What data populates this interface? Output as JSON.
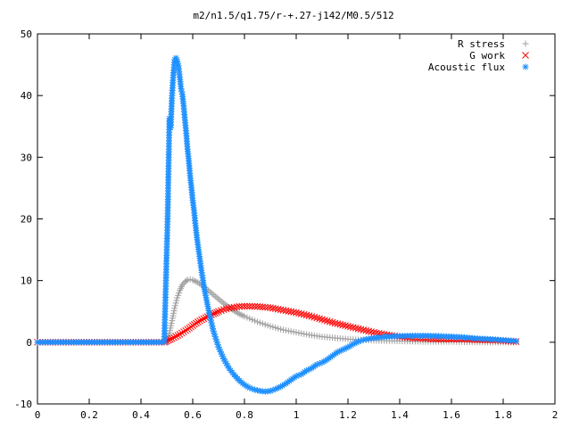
{
  "chart_data": {
    "type": "scatter",
    "title": "m2/n1.5/q1.75/r-+.27-j142/M0.5/512",
    "xlabel": "",
    "ylabel": "",
    "xlim": [
      0,
      2
    ],
    "ylim": [
      -10,
      50
    ],
    "xticks": [
      0,
      0.2,
      0.4,
      0.6,
      0.8,
      1,
      1.2,
      1.4,
      1.6,
      1.8,
      2
    ],
    "xtick_labels": [
      "0",
      "0.2",
      "0.4",
      "0.6",
      "0.8",
      "1",
      "1.2",
      "1.4",
      "1.6",
      "1.8",
      "2"
    ],
    "yticks": [
      -10,
      0,
      10,
      20,
      30,
      40,
      50
    ],
    "ytick_labels": [
      "-10",
      "0",
      "10",
      "20",
      "30",
      "40",
      "50"
    ],
    "grid": false,
    "legend_position": "top-right",
    "series": [
      {
        "name": "R stress",
        "marker": "+",
        "color": "#a0a0a0",
        "points": [
          [
            0.0,
            0
          ],
          [
            0.1,
            0
          ],
          [
            0.2,
            0
          ],
          [
            0.3,
            0
          ],
          [
            0.4,
            0
          ],
          [
            0.49,
            0
          ],
          [
            0.5,
            0.3
          ],
          [
            0.51,
            1.5
          ],
          [
            0.52,
            3.5
          ],
          [
            0.53,
            5.5
          ],
          [
            0.54,
            7.2
          ],
          [
            0.55,
            8.4
          ],
          [
            0.56,
            9.3
          ],
          [
            0.57,
            9.8
          ],
          [
            0.58,
            10.1
          ],
          [
            0.59,
            10.2
          ],
          [
            0.6,
            10.1
          ],
          [
            0.62,
            9.7
          ],
          [
            0.64,
            9.1
          ],
          [
            0.66,
            8.4
          ],
          [
            0.68,
            7.7
          ],
          [
            0.7,
            7.0
          ],
          [
            0.72,
            6.3
          ],
          [
            0.74,
            5.7
          ],
          [
            0.76,
            5.1
          ],
          [
            0.78,
            4.6
          ],
          [
            0.8,
            4.2
          ],
          [
            0.85,
            3.3
          ],
          [
            0.9,
            2.6
          ],
          [
            0.95,
            2.0
          ],
          [
            1.0,
            1.6
          ],
          [
            1.05,
            1.2
          ],
          [
            1.1,
            0.9
          ],
          [
            1.15,
            0.7
          ],
          [
            1.2,
            0.5
          ],
          [
            1.3,
            0.3
          ],
          [
            1.4,
            0.2
          ],
          [
            1.5,
            0.1
          ],
          [
            1.6,
            0.1
          ],
          [
            1.7,
            0
          ],
          [
            1.8,
            0
          ],
          [
            1.85,
            0
          ]
        ]
      },
      {
        "name": "G work",
        "marker": "x",
        "color": "#ff0000",
        "points": [
          [
            0.0,
            0
          ],
          [
            0.1,
            0
          ],
          [
            0.2,
            0
          ],
          [
            0.3,
            0
          ],
          [
            0.4,
            0
          ],
          [
            0.49,
            0
          ],
          [
            0.5,
            0.2
          ],
          [
            0.52,
            0.6
          ],
          [
            0.55,
            1.3
          ],
          [
            0.58,
            2.1
          ],
          [
            0.6,
            2.7
          ],
          [
            0.62,
            3.3
          ],
          [
            0.65,
            4.0
          ],
          [
            0.68,
            4.6
          ],
          [
            0.7,
            5.0
          ],
          [
            0.72,
            5.3
          ],
          [
            0.75,
            5.6
          ],
          [
            0.78,
            5.8
          ],
          [
            0.8,
            5.85
          ],
          [
            0.85,
            5.8
          ],
          [
            0.9,
            5.6
          ],
          [
            0.95,
            5.2
          ],
          [
            1.0,
            4.8
          ],
          [
            1.05,
            4.3
          ],
          [
            1.1,
            3.7
          ],
          [
            1.15,
            3.1
          ],
          [
            1.2,
            2.6
          ],
          [
            1.25,
            2.1
          ],
          [
            1.3,
            1.6
          ],
          [
            1.35,
            1.2
          ],
          [
            1.4,
            0.9
          ],
          [
            1.45,
            0.7
          ],
          [
            1.5,
            0.6
          ],
          [
            1.55,
            0.5
          ],
          [
            1.6,
            0.5
          ],
          [
            1.65,
            0.5
          ],
          [
            1.7,
            0.4
          ],
          [
            1.75,
            0.35
          ],
          [
            1.8,
            0.25
          ],
          [
            1.85,
            0.1
          ]
        ]
      },
      {
        "name": "Acoustic flux",
        "marker": "*",
        "color": "#1e90ff",
        "points": [
          [
            0.0,
            0
          ],
          [
            0.1,
            0
          ],
          [
            0.2,
            0
          ],
          [
            0.3,
            0
          ],
          [
            0.4,
            0
          ],
          [
            0.49,
            0
          ],
          [
            0.503,
            20
          ],
          [
            0.51,
            36.3
          ],
          [
            0.515,
            34.8
          ],
          [
            0.52,
            40
          ],
          [
            0.525,
            43.3
          ],
          [
            0.53,
            45.8
          ],
          [
            0.535,
            46.1
          ],
          [
            0.54,
            45.6
          ],
          [
            0.545,
            44.8
          ],
          [
            0.55,
            43
          ],
          [
            0.555,
            41.1
          ],
          [
            0.56,
            40.2
          ],
          [
            0.565,
            38.3
          ],
          [
            0.57,
            36
          ],
          [
            0.575,
            33.9
          ],
          [
            0.58,
            31.3
          ],
          [
            0.585,
            29.4
          ],
          [
            0.59,
            27
          ],
          [
            0.595,
            25.1
          ],
          [
            0.6,
            23
          ],
          [
            0.605,
            21.4
          ],
          [
            0.61,
            19.3
          ],
          [
            0.615,
            17.4
          ],
          [
            0.62,
            15.8
          ],
          [
            0.625,
            14.3
          ],
          [
            0.63,
            12.8
          ],
          [
            0.635,
            11.3
          ],
          [
            0.64,
            10
          ],
          [
            0.645,
            8.6
          ],
          [
            0.65,
            7.6
          ],
          [
            0.655,
            6.5
          ],
          [
            0.66,
            5.5
          ],
          [
            0.665,
            4.4
          ],
          [
            0.67,
            3.6
          ],
          [
            0.675,
            2.7
          ],
          [
            0.68,
            1.8
          ],
          [
            0.69,
            0.5
          ],
          [
            0.7,
            -0.8
          ],
          [
            0.72,
            -2.7
          ],
          [
            0.74,
            -4.2
          ],
          [
            0.76,
            -5.3
          ],
          [
            0.78,
            -6.2
          ],
          [
            0.8,
            -6.9
          ],
          [
            0.82,
            -7.4
          ],
          [
            0.84,
            -7.7
          ],
          [
            0.86,
            -7.9
          ],
          [
            0.88,
            -8.0
          ],
          [
            0.9,
            -7.9
          ],
          [
            0.92,
            -7.6
          ],
          [
            0.94,
            -7.2
          ],
          [
            0.96,
            -6.7
          ],
          [
            0.98,
            -6.1
          ],
          [
            1.0,
            -5.5
          ],
          [
            1.02,
            -5.2
          ],
          [
            1.04,
            -4.6
          ],
          [
            1.06,
            -4.2
          ],
          [
            1.08,
            -3.6
          ],
          [
            1.1,
            -3.3
          ],
          [
            1.12,
            -2.8
          ],
          [
            1.14,
            -2.2
          ],
          [
            1.16,
            -1.6
          ],
          [
            1.18,
            -1.2
          ],
          [
            1.2,
            -0.8
          ],
          [
            1.22,
            -0.3
          ],
          [
            1.24,
            0.1
          ],
          [
            1.26,
            0.4
          ],
          [
            1.3,
            0.7
          ],
          [
            1.35,
            0.9
          ],
          [
            1.4,
            1.0
          ],
          [
            1.45,
            1.05
          ],
          [
            1.5,
            1.05
          ],
          [
            1.55,
            1.0
          ],
          [
            1.6,
            0.9
          ],
          [
            1.65,
            0.8
          ],
          [
            1.7,
            0.6
          ],
          [
            1.75,
            0.5
          ],
          [
            1.8,
            0.35
          ],
          [
            1.85,
            0.2
          ]
        ]
      }
    ]
  }
}
